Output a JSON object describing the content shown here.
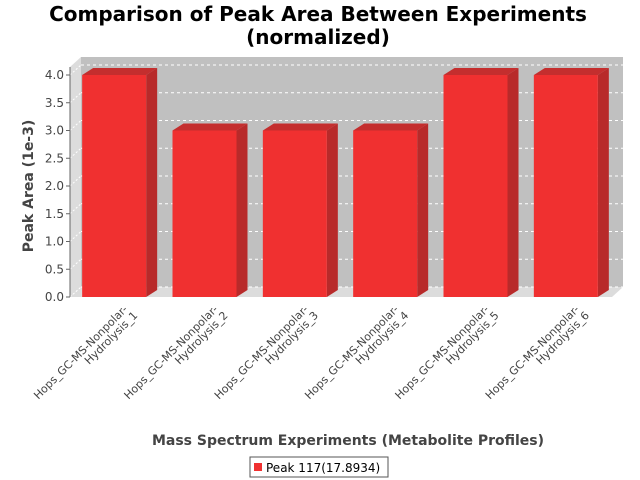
{
  "chart_data": {
    "type": "bar",
    "title_lines": [
      "Comparison of Peak Area Between Experiments",
      "(normalized)"
    ],
    "xlabel": "Mass Spectrum Experiments (Metabolite Profiles)",
    "ylabel": "Peak Area (1e-3)",
    "ylim": [
      0,
      4.0
    ],
    "yticks": [
      "0.0",
      "0.5",
      "1.0",
      "1.5",
      "2.0",
      "2.5",
      "3.0",
      "3.5",
      "4.0"
    ],
    "categories": [
      [
        "Hops_GC-MS-Nonpolar-",
        "Hydrolysis_1"
      ],
      [
        "Hops_GC-MS-Nonpolar-",
        "Hydrolysis_2"
      ],
      [
        "Hops_GC-MS-Nonpolar-",
        "Hydrolysis_3"
      ],
      [
        "Hops_GC-MS-Nonpolar-",
        "Hydrolysis_4"
      ],
      [
        "Hops_GC-MS-Nonpolar-",
        "Hydrolysis_5"
      ],
      [
        "Hops_GC-MS-Nonpolar-",
        "Hydrolysis_6"
      ]
    ],
    "series": [
      {
        "name": "Peak 117(17.8934)",
        "values": [
          4.0,
          3.0,
          3.0,
          3.0,
          4.0,
          4.0
        ]
      }
    ],
    "grid": true,
    "legend_position": "bottom-center",
    "colors": {
      "bar_front": "#f03030",
      "bar_side": "#b82a2a",
      "bar_top": "#c42e2e",
      "plot_back": "#c0c0c0",
      "plot_wall": "#dcdcdc"
    }
  }
}
